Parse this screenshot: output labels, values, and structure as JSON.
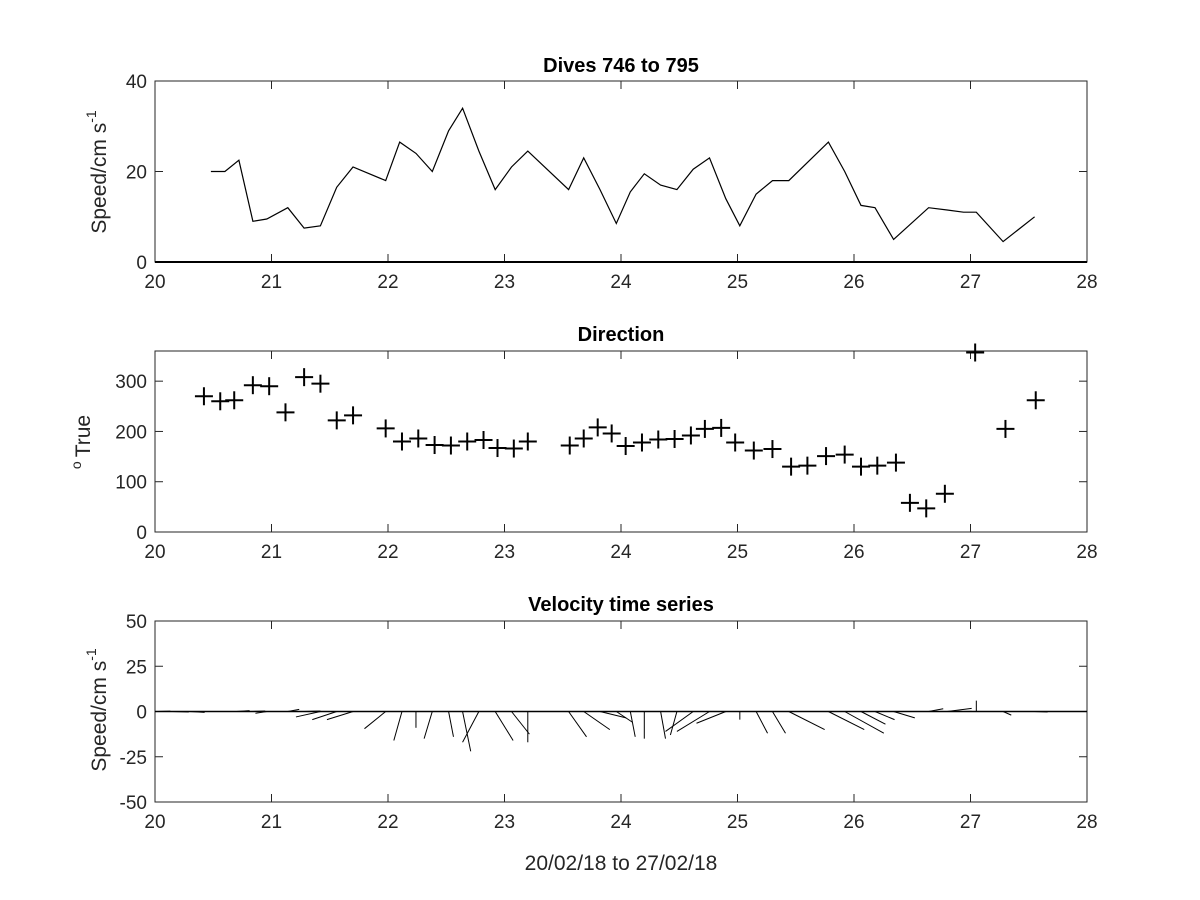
{
  "figure": {
    "xlabel": "20/02/18 to 27/02/18"
  },
  "chart_data": [
    {
      "type": "line",
      "title": "Dives 746 to 795",
      "ylabel": "Speed/cm s",
      "ylabel_superscript": "-1",
      "xlim": [
        20,
        28
      ],
      "ylim": [
        0,
        40
      ],
      "xticks": [
        20,
        21,
        22,
        23,
        24,
        25,
        26,
        27,
        28
      ],
      "yticks": [
        0,
        20,
        40
      ],
      "color": "#000000",
      "series": [
        {
          "x": [
            20.48,
            20.6,
            20.72,
            20.84,
            20.96,
            21.14,
            21.28,
            21.42,
            21.56,
            21.7,
            21.98,
            22.1,
            22.24,
            22.38,
            22.52,
            22.64,
            22.78,
            22.92,
            23.06,
            23.2,
            23.55,
            23.68,
            23.82,
            23.96,
            24.08,
            24.2,
            24.34,
            24.48,
            24.62,
            24.76,
            24.9,
            25.02,
            25.16,
            25.3,
            25.44,
            25.78,
            25.92,
            26.06,
            26.18,
            26.34,
            26.64,
            26.8,
            26.94,
            27.05,
            27.28,
            27.55
          ],
          "y": [
            20,
            20,
            22.5,
            9,
            9.5,
            12,
            7.5,
            8,
            16.5,
            21,
            18,
            26.5,
            24,
            20,
            29,
            34,
            24.5,
            16,
            21,
            24.5,
            16,
            23,
            16,
            8.5,
            15.5,
            19.5,
            17,
            16,
            20.5,
            23,
            14,
            8,
            15,
            18,
            18,
            26.5,
            20,
            12.5,
            12,
            5,
            12,
            11.5,
            11,
            11,
            4.5,
            10
          ]
        }
      ]
    },
    {
      "type": "scatter",
      "title": "Direction",
      "ylabel": "True",
      "ylabel_superscript": "o",
      "xlim": [
        20,
        28
      ],
      "ylim": [
        0,
        360
      ],
      "xticks": [
        20,
        21,
        22,
        23,
        24,
        25,
        26,
        27,
        28
      ],
      "yticks": [
        0,
        100,
        200,
        300
      ],
      "marker": "+",
      "color": "#000000",
      "series": [
        {
          "x": [
            20.42,
            20.56,
            20.68,
            20.84,
            20.98,
            21.12,
            21.28,
            21.42,
            21.56,
            21.7,
            21.98,
            22.12,
            22.26,
            22.4,
            22.54,
            22.68,
            22.82,
            22.94,
            23.08,
            23.2,
            23.56,
            23.68,
            23.8,
            23.92,
            24.04,
            24.18,
            24.32,
            24.46,
            24.6,
            24.72,
            24.86,
            24.98,
            25.14,
            25.3,
            25.46,
            25.6,
            25.76,
            25.92,
            26.06,
            26.2,
            26.36,
            26.48,
            26.62,
            26.78,
            27.04,
            27.3,
            27.56
          ],
          "y": [
            270,
            260,
            262,
            292,
            290,
            238,
            308,
            295,
            222,
            232,
            206,
            180,
            186,
            173,
            172,
            180,
            183,
            167,
            166,
            180,
            172,
            186,
            208,
            196,
            171,
            178,
            184,
            185,
            192,
            205,
            207,
            178,
            162,
            165,
            130,
            132,
            151,
            154,
            130,
            132,
            138,
            58,
            47,
            76,
            357,
            205,
            262
          ]
        }
      ]
    },
    {
      "type": "quiver",
      "title": "Velocity time series",
      "ylabel": "Speed/cm s",
      "ylabel_superscript": "-1",
      "xlim": [
        20,
        28
      ],
      "ylim": [
        -50,
        50
      ],
      "xticks": [
        20,
        21,
        22,
        23,
        24,
        25,
        26,
        27,
        28
      ],
      "yticks": [
        -50,
        -25,
        0,
        25,
        50
      ],
      "color": "#000000",
      "arrows": [
        {
          "x": 20.02,
          "u": 0.8,
          "v": 0.2
        },
        {
          "x": 20.15,
          "u": 1.0,
          "v": -0.3
        },
        {
          "x": 20.3,
          "u": 0.9,
          "v": -0.5
        },
        {
          "x": 20.7,
          "u": 0.8,
          "v": 0.5
        },
        {
          "x": 20.82,
          "u": 0.9,
          "v": 0.3
        },
        {
          "x": 20.96,
          "u": -0.7,
          "v": -1.0
        },
        {
          "x": 21.14,
          "u": 0.7,
          "v": 1.2
        },
        {
          "x": 21.28,
          "u": 1.0,
          "v": 0.3
        },
        {
          "x": 21.42,
          "u": -1.5,
          "v": -3.0
        },
        {
          "x": 21.56,
          "u": -1.5,
          "v": -4.5
        },
        {
          "x": 21.7,
          "u": -1.6,
          "v": -4.5
        },
        {
          "x": 21.98,
          "u": -1.3,
          "v": -9.5
        },
        {
          "x": 22.12,
          "u": -0.5,
          "v": -16.0
        },
        {
          "x": 22.24,
          "u": 0.0,
          "v": -9.0
        },
        {
          "x": 22.38,
          "u": -0.5,
          "v": -15.0
        },
        {
          "x": 22.52,
          "u": 0.3,
          "v": -14.0
        },
        {
          "x": 22.64,
          "u": 0.5,
          "v": -22.0
        },
        {
          "x": 22.78,
          "u": -1.0,
          "v": -17.0
        },
        {
          "x": 22.92,
          "u": 1.1,
          "v": -16.0
        },
        {
          "x": 23.06,
          "u": 1.1,
          "v": -12.5
        },
        {
          "x": 23.2,
          "u": 0.0,
          "v": -17.0
        },
        {
          "x": 23.55,
          "u": 1.1,
          "v": -14.0
        },
        {
          "x": 23.68,
          "u": 1.6,
          "v": -10.0
        },
        {
          "x": 23.82,
          "u": 1.6,
          "v": -3.5
        },
        {
          "x": 23.96,
          "u": 1.0,
          "v": -6.0
        },
        {
          "x": 24.08,
          "u": 0.3,
          "v": -14.0
        },
        {
          "x": 24.2,
          "u": 0.0,
          "v": -15.0
        },
        {
          "x": 24.34,
          "u": 0.3,
          "v": -15.0
        },
        {
          "x": 24.48,
          "u": -0.4,
          "v": -13.0
        },
        {
          "x": 24.62,
          "u": -1.7,
          "v": -11.0
        },
        {
          "x": 24.76,
          "u": -2.0,
          "v": -11.0
        },
        {
          "x": 24.9,
          "u": -1.8,
          "v": -6.5
        },
        {
          "x": 25.02,
          "u": 0.0,
          "v": -4.5
        },
        {
          "x": 25.16,
          "u": 0.7,
          "v": -12.0
        },
        {
          "x": 25.3,
          "u": 0.8,
          "v": -12.0
        },
        {
          "x": 25.44,
          "u": 2.2,
          "v": -10.0
        },
        {
          "x": 25.78,
          "u": 2.2,
          "v": -10.0
        },
        {
          "x": 25.92,
          "u": 2.4,
          "v": -12.0
        },
        {
          "x": 26.06,
          "u": 1.5,
          "v": -7.0
        },
        {
          "x": 26.18,
          "u": 1.2,
          "v": -4.5
        },
        {
          "x": 26.34,
          "u": 1.3,
          "v": -3.5
        },
        {
          "x": 26.64,
          "u": 0.9,
          "v": 1.5
        },
        {
          "x": 26.8,
          "u": 1.5,
          "v": 1.7
        },
        {
          "x": 26.94,
          "u": 0.5,
          "v": 0.1
        },
        {
          "x": 27.05,
          "u": 0.0,
          "v": 6.0
        },
        {
          "x": 27.28,
          "u": 0.5,
          "v": -2.0
        },
        {
          "x": 27.55,
          "u": 0.8,
          "v": -0.3
        }
      ]
    }
  ]
}
